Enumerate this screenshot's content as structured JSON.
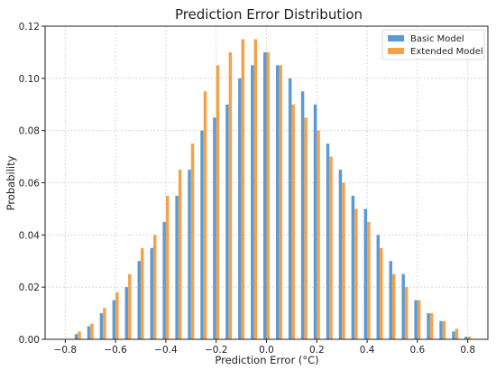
{
  "chart_data": {
    "type": "bar",
    "title": "Prediction Error Distribution",
    "xlabel": "Prediction Error (°C)",
    "ylabel": "Probability",
    "xlim": [
      -0.88,
      0.88
    ],
    "ylim": [
      0,
      0.12
    ],
    "grid": true,
    "legend_position": "top-right",
    "x_ticks": [
      -0.8,
      -0.6,
      -0.4,
      -0.2,
      0.0,
      0.2,
      0.4,
      0.6,
      0.8
    ],
    "x_tick_labels": [
      "−0.8",
      "−0.6",
      "−0.4",
      "−0.2",
      "0.0",
      "0.2",
      "0.4",
      "0.6",
      "0.8"
    ],
    "y_ticks": [
      0,
      0.02,
      0.04,
      0.06,
      0.08,
      0.1,
      0.12
    ],
    "y_tick_labels": [
      "0.00",
      "0.02",
      "0.04",
      "0.06",
      "0.08",
      "0.10",
      "0.12"
    ],
    "x": [
      -0.75,
      -0.7,
      -0.65,
      -0.6,
      -0.55,
      -0.5,
      -0.45,
      -0.4,
      -0.35,
      -0.3,
      -0.25,
      -0.2,
      -0.15,
      -0.1,
      -0.05,
      0.0,
      0.05,
      0.1,
      0.15,
      0.2,
      0.25,
      0.3,
      0.35,
      0.4,
      0.45,
      0.5,
      0.55,
      0.6,
      0.65,
      0.7,
      0.75,
      0.8
    ],
    "series": [
      {
        "name": "Basic Model",
        "color": "#5b9bd5",
        "values": [
          0.002,
          0.005,
          0.01,
          0.015,
          0.02,
          0.03,
          0.035,
          0.045,
          0.055,
          0.065,
          0.08,
          0.085,
          0.09,
          0.1,
          0.105,
          0.11,
          0.105,
          0.1,
          0.095,
          0.09,
          0.075,
          0.065,
          0.055,
          0.05,
          0.04,
          0.03,
          0.025,
          0.015,
          0.01,
          0.007,
          0.003,
          0.001
        ]
      },
      {
        "name": "Extended Model",
        "color": "#f4a24a",
        "values": [
          0.003,
          0.006,
          0.012,
          0.018,
          0.025,
          0.035,
          0.04,
          0.055,
          0.065,
          0.075,
          0.095,
          0.105,
          0.11,
          0.115,
          0.115,
          0.11,
          0.105,
          0.09,
          0.085,
          0.08,
          0.07,
          0.06,
          0.05,
          0.045,
          0.035,
          0.025,
          0.02,
          0.015,
          0.01,
          0.007,
          0.004,
          0.001
        ]
      }
    ]
  }
}
